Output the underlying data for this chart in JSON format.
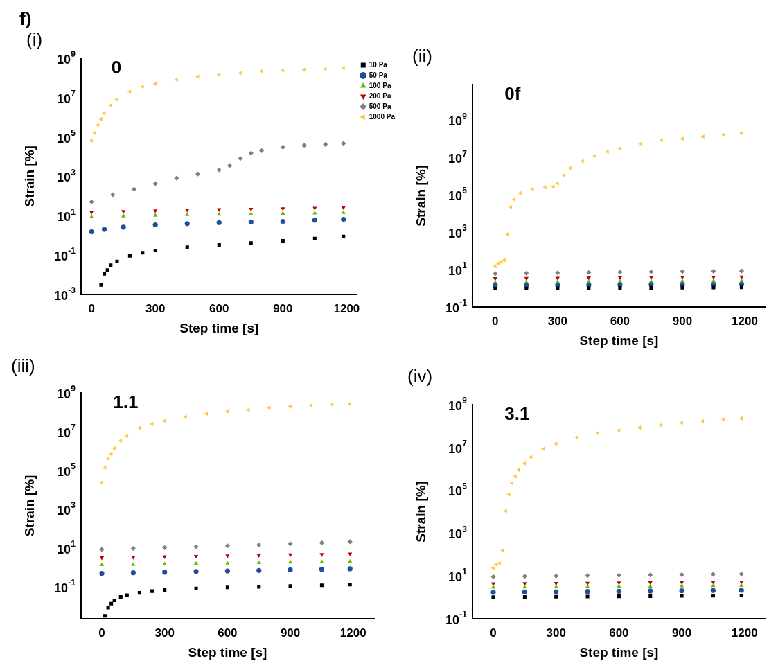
{
  "chart_data": [
    {
      "type": "scatter",
      "title": "0",
      "annotations": [
        "f)",
        "(i)"
      ],
      "xlabel": "Step time [s]",
      "ylabel": "Strain [%]",
      "log": "y",
      "legend": "right",
      "xlim": [
        -50,
        1250
      ],
      "xticks": [
        0,
        300,
        600,
        900,
        1200
      ],
      "ylim": [
        0.001,
        1000000000
      ],
      "yticks": [
        {
          "value": 0.001,
          "label": "10$^{-3}$"
        },
        {
          "value": 0.1,
          "label": "10$^{-1}$"
        },
        {
          "value": 10,
          "label": "10$^{1}$"
        },
        {
          "value": 1000,
          "label": "10$^{3}$"
        },
        {
          "value": 100000,
          "label": "10$^{5}$"
        },
        {
          "value": 10000000,
          "label": "10$^{7}$"
        },
        {
          "value": 1000000000,
          "label": "10$^{9}$"
        }
      ],
      "series": [
        {
          "name": "10 Pa",
          "color": "#000000",
          "marker": "square",
          "x": [
            45,
            60,
            75,
            90,
            120,
            180,
            240,
            300,
            450,
            600,
            750,
            900,
            1050,
            1185
          ],
          "values": [
            0.003,
            0.011,
            0.017,
            0.03,
            0.047,
            0.09,
            0.13,
            0.17,
            0.25,
            0.32,
            0.4,
            0.53,
            0.68,
            0.87
          ]
        },
        {
          "name": "50 Pa",
          "color": "#1f4e9c",
          "marker": "circle",
          "x": [
            0,
            60,
            150,
            300,
            450,
            600,
            750,
            900,
            1050,
            1185
          ],
          "values": [
            1.5,
            2,
            2.6,
            3.4,
            3.9,
            4.4,
            4.8,
            5.1,
            5.8,
            6.5
          ]
        },
        {
          "name": "100 Pa",
          "color": "#66bb00",
          "marker": "triangle",
          "x": [
            0,
            150,
            300,
            450,
            600,
            750,
            900,
            1050,
            1185
          ],
          "values": [
            8.5,
            9.5,
            10.3,
            11,
            11.6,
            12.2,
            12.8,
            13.4,
            14
          ]
        },
        {
          "name": "200 Pa",
          "color": "#c00000",
          "marker": "triangle-down",
          "x": [
            0,
            150,
            300,
            450,
            600,
            750,
            900,
            1050,
            1185
          ],
          "values": [
            15,
            16.5,
            18,
            19.2,
            20.4,
            21.6,
            23,
            24.4,
            26
          ]
        },
        {
          "name": "500 Pa",
          "color": "#808080",
          "marker": "diamond",
          "x": [
            0,
            100,
            200,
            300,
            400,
            500,
            600,
            650,
            700,
            750,
            800,
            900,
            1000,
            1100,
            1185
          ],
          "values": [
            50,
            115,
            220,
            420,
            800,
            1300,
            2100,
            3500,
            8000,
            15000,
            20000,
            30000,
            37000,
            42000,
            47000
          ]
        },
        {
          "name": "1000 Pa",
          "color": "#ffc83d",
          "marker": "triangle-left",
          "x": [
            0,
            15,
            30,
            45,
            60,
            90,
            120,
            180,
            240,
            300,
            400,
            500,
            600,
            700,
            800,
            900,
            1000,
            1100,
            1185
          ],
          "values": [
            65000,
            160000,
            400000,
            800000,
            1600000,
            4000000,
            8000000,
            20000000,
            36000000,
            50000000,
            80000000,
            115000000,
            145000000,
            175000000,
            220000000,
            240000000,
            260000000,
            280000000,
            320000000
          ]
        }
      ]
    },
    {
      "type": "scatter",
      "title": "0f",
      "annotations": [
        "(ii)"
      ],
      "xlabel": "Step time [s]",
      "ylabel": "Strain [%]",
      "log": "y",
      "xlim": [
        -110,
        1300
      ],
      "xticks": [
        0,
        300,
        600,
        900,
        1200
      ],
      "ylim": [
        0.1,
        80000000000
      ],
      "yticks": [
        {
          "value": 0.1,
          "label": "10$^{-1}$"
        },
        {
          "value": 10,
          "label": "10$^{1}$"
        },
        {
          "value": 1000,
          "label": "10$^{3}$"
        },
        {
          "value": 100000,
          "label": "10$^{5}$"
        },
        {
          "value": 10000000,
          "label": "10$^{7}$"
        },
        {
          "value": 1000000000,
          "label": "10$^{9}$"
        }
      ],
      "series": [
        {
          "color": "#000000",
          "marker": "square",
          "x": [
            0,
            150,
            300,
            450,
            600,
            750,
            900,
            1050,
            1185
          ],
          "values": [
            0.95,
            0.97,
            0.99,
            1,
            1.02,
            1.04,
            1.06,
            1.08,
            1.1
          ]
        },
        {
          "color": "#1f4e9c",
          "marker": "circle",
          "x": [
            0,
            150,
            300,
            450,
            600,
            750,
            900,
            1050,
            1185
          ],
          "values": [
            1.4,
            1.42,
            1.45,
            1.48,
            1.5,
            1.53,
            1.55,
            1.58,
            1.6
          ]
        },
        {
          "color": "#66bb00",
          "marker": "triangle",
          "x": [
            0,
            150,
            300,
            450,
            600,
            750,
            900,
            1050,
            1185
          ],
          "values": [
            2,
            2.05,
            2.1,
            2.2,
            2.25,
            2.3,
            2.4,
            2.45,
            2.5
          ]
        },
        {
          "color": "#c00000",
          "marker": "triangle-down",
          "x": [
            0,
            150,
            300,
            450,
            600,
            750,
            900,
            1050,
            1185
          ],
          "values": [
            3.3,
            3.4,
            3.5,
            3.6,
            3.7,
            3.8,
            3.9,
            3.95,
            4
          ]
        },
        {
          "color": "#808080",
          "marker": "diamond",
          "x": [
            0,
            150,
            300,
            450,
            600,
            750,
            900,
            1050,
            1185
          ],
          "values": [
            6,
            6.3,
            6.6,
            6.9,
            7.2,
            7.5,
            7.8,
            8,
            8.3
          ]
        },
        {
          "color": "#ffc83d",
          "marker": "triangle-left",
          "x": [
            0,
            15,
            30,
            45,
            60,
            75,
            90,
            120,
            180,
            240,
            280,
            300,
            330,
            360,
            420,
            480,
            540,
            600,
            700,
            800,
            900,
            1000,
            1100,
            1185
          ],
          "values": [
            15,
            21,
            25,
            32,
            760,
            22000,
            56000,
            120000,
            200000,
            250000,
            270000,
            400000,
            1100000,
            2700000,
            6300000,
            12000000,
            20000000,
            30000000,
            54000000,
            83000000,
            100000000,
            130000000,
            160000000,
            200000000
          ]
        }
      ]
    },
    {
      "type": "scatter",
      "title": "1.1",
      "annotations": [
        "(iii)"
      ],
      "xlabel": "Step time [s]",
      "ylabel": "Strain [%]",
      "log": "y",
      "xlim": [
        -100,
        1300
      ],
      "xticks": [
        0,
        300,
        600,
        900,
        1200
      ],
      "ylim": [
        0.0023,
        1000000000
      ],
      "yticks": [
        {
          "value": 0.1,
          "label": "10$^{-1}$"
        },
        {
          "value": 10,
          "label": "10$^{1}$"
        },
        {
          "value": 1000,
          "label": "10$^{3}$"
        },
        {
          "value": 100000,
          "label": "10$^{5}$"
        },
        {
          "value": 10000000,
          "label": "10$^{7}$"
        },
        {
          "value": 1000000000,
          "label": "10$^{9}$"
        }
      ],
      "series": [
        {
          "color": "#000000",
          "marker": "square",
          "x": [
            15,
            30,
            45,
            60,
            90,
            120,
            180,
            240,
            300,
            450,
            600,
            750,
            900,
            1050,
            1185
          ],
          "values": [
            0.0032,
            0.0085,
            0.0135,
            0.02,
            0.03,
            0.037,
            0.049,
            0.06,
            0.069,
            0.083,
            0.094,
            0.1,
            0.11,
            0.12,
            0.13
          ]
        },
        {
          "color": "#1f4e9c",
          "marker": "circle",
          "x": [
            0,
            150,
            300,
            450,
            600,
            750,
            900,
            1050,
            1185
          ],
          "values": [
            0.49,
            0.53,
            0.57,
            0.62,
            0.66,
            0.7,
            0.75,
            0.8,
            0.85
          ]
        },
        {
          "color": "#66bb00",
          "marker": "triangle",
          "x": [
            0,
            150,
            300,
            450,
            600,
            750,
            900,
            1050,
            1185
          ],
          "values": [
            1.35,
            1.4,
            1.5,
            1.6,
            1.65,
            1.75,
            1.85,
            1.9,
            2
          ]
        },
        {
          "color": "#c00000",
          "marker": "triangle-down",
          "x": [
            0,
            150,
            300,
            450,
            600,
            750,
            900,
            1050,
            1185
          ],
          "values": [
            3.2,
            3.4,
            3.6,
            3.8,
            4,
            4.2,
            4.5,
            4.7,
            5
          ]
        },
        {
          "color": "#808080",
          "marker": "diamond",
          "x": [
            0,
            150,
            300,
            450,
            600,
            750,
            900,
            1050,
            1185
          ],
          "values": [
            8.5,
            9.5,
            10.5,
            11.7,
            13,
            14.5,
            16.5,
            18.5,
            21
          ]
        },
        {
          "color": "#ffc83d",
          "marker": "triangle-left",
          "x": [
            0,
            15,
            30,
            45,
            60,
            90,
            120,
            180,
            240,
            300,
            400,
            500,
            600,
            700,
            800,
            900,
            1000,
            1100,
            1185
          ],
          "values": [
            24000,
            140000,
            400000,
            700000,
            1400000,
            3400000,
            6000000,
            16000000,
            25000000,
            36000000,
            58000000,
            85000000,
            110000000,
            135000000,
            170000000,
            200000000,
            230000000,
            250000000,
            270000000
          ]
        }
      ]
    },
    {
      "type": "scatter",
      "title": "3.1",
      "annotations": [
        "(iv)"
      ],
      "xlabel": "Step time [s]",
      "ylabel": "Strain [%]",
      "log": "y",
      "xlim": [
        -100,
        1300
      ],
      "xticks": [
        0,
        300,
        600,
        900,
        1200
      ],
      "ylim": [
        0.1,
        1000000000
      ],
      "yticks": [
        {
          "value": 0.1,
          "label": "10$^{-1}$"
        },
        {
          "value": 10,
          "label": "10$^{1}$"
        },
        {
          "value": 1000,
          "label": "10$^{3}$"
        },
        {
          "value": 100000,
          "label": "10$^{5}$"
        },
        {
          "value": 10000000,
          "label": "10$^{7}$"
        },
        {
          "value": 1000000000,
          "label": "10$^{9}$"
        }
      ],
      "series": [
        {
          "color": "#000000",
          "marker": "square",
          "x": [
            0,
            150,
            300,
            450,
            600,
            750,
            900,
            1050,
            1185
          ],
          "values": [
            1,
            1.02,
            1.05,
            1.07,
            1.1,
            1.12,
            1.15,
            1.17,
            1.2
          ]
        },
        {
          "color": "#1f4e9c",
          "marker": "circle",
          "x": [
            0,
            150,
            300,
            450,
            600,
            750,
            900,
            1050,
            1185
          ],
          "values": [
            1.7,
            1.75,
            1.8,
            1.85,
            1.9,
            1.95,
            2,
            2.05,
            2.1
          ]
        },
        {
          "color": "#66bb00",
          "marker": "triangle",
          "x": [
            0,
            150,
            300,
            450,
            600,
            750,
            900,
            1050,
            1185
          ],
          "values": [
            2.9,
            2.95,
            3,
            3.1,
            3.2,
            3.25,
            3.35,
            3.4,
            3.5
          ]
        },
        {
          "color": "#c00000",
          "marker": "triangle-down",
          "x": [
            0,
            150,
            300,
            450,
            600,
            750,
            900,
            1050,
            1185
          ],
          "values": [
            4.3,
            4.4,
            4.5,
            4.6,
            4.75,
            4.85,
            4.95,
            5.1,
            5.2
          ]
        },
        {
          "color": "#808080",
          "marker": "diamond",
          "x": [
            0,
            150,
            300,
            450,
            600,
            750,
            900,
            1050,
            1185
          ],
          "values": [
            9,
            9.4,
            9.8,
            10.2,
            10.6,
            11,
            11.3,
            11.7,
            12
          ]
        },
        {
          "color": "#ffc83d",
          "marker": "triangle-left",
          "x": [
            0,
            15,
            30,
            45,
            60,
            75,
            90,
            105,
            120,
            150,
            180,
            240,
            300,
            400,
            500,
            600,
            700,
            800,
            900,
            1000,
            1100,
            1185
          ],
          "values": [
            23,
            34,
            39,
            155,
            10700,
            63000,
            210000,
            440000,
            890000,
            1800000,
            3500000,
            8700000,
            15000000,
            30000000,
            47000000,
            63000000,
            85000000,
            110000000,
            140000000,
            170000000,
            200000000,
            230000000
          ]
        }
      ]
    }
  ]
}
